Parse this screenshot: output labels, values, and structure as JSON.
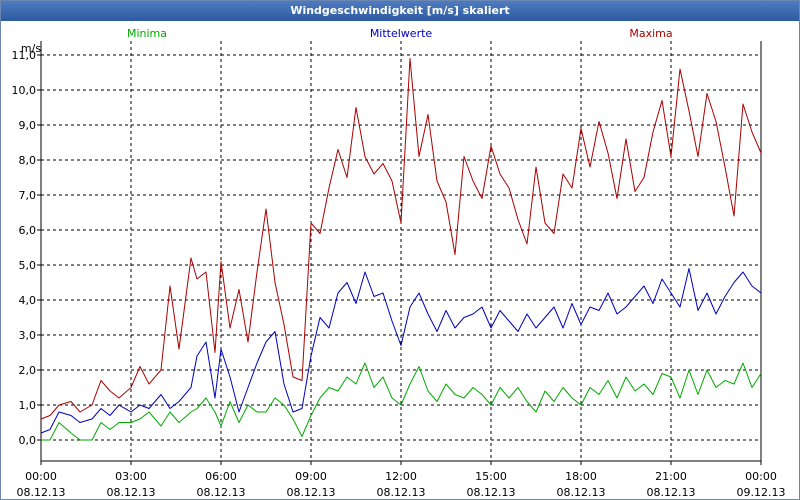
{
  "window": {
    "title": "Windgeschwindigkeit [m/s] skaliert"
  },
  "chart_data": {
    "type": "line",
    "title": "Windgeschwindigkeit [m/s] skaliert",
    "ylabel": "m/s",
    "xlabel": "",
    "ylim": [
      -0.6,
      11.4
    ],
    "xlim": [
      0,
      24
    ],
    "grid": true,
    "yticks": [
      {
        "v": 0,
        "label": "0,0"
      },
      {
        "v": 1,
        "label": "1,0"
      },
      {
        "v": 2,
        "label": "2,0"
      },
      {
        "v": 3,
        "label": "3,0"
      },
      {
        "v": 4,
        "label": "4,0"
      },
      {
        "v": 5,
        "label": "5,0"
      },
      {
        "v": 6,
        "label": "6,0"
      },
      {
        "v": 7,
        "label": "7,0"
      },
      {
        "v": 8,
        "label": "8,0"
      },
      {
        "v": 9,
        "label": "9,0"
      },
      {
        "v": 10,
        "label": "10,0"
      },
      {
        "v": 11,
        "label": "11,0"
      }
    ],
    "xticks": [
      {
        "h": 0,
        "time": "00:00",
        "date": "08.12.13"
      },
      {
        "h": 3,
        "time": "03:00",
        "date": "08.12.13"
      },
      {
        "h": 6,
        "time": "06:00",
        "date": "08.12.13"
      },
      {
        "h": 9,
        "time": "09:00",
        "date": "08.12.13"
      },
      {
        "h": 12,
        "time": "12:00",
        "date": "08.12.13"
      },
      {
        "h": 15,
        "time": "15:00",
        "date": "08.12.13"
      },
      {
        "h": 18,
        "time": "18:00",
        "date": "08.12.13"
      },
      {
        "h": 21,
        "time": "21:00",
        "date": "08.12.13"
      },
      {
        "h": 24,
        "time": "00:00",
        "date": "09.12.13"
      }
    ],
    "series": [
      {
        "name": "Minima",
        "color": "#00aa00",
        "x": [
          0,
          0.3,
          0.6,
          1,
          1.3,
          1.7,
          2,
          2.3,
          2.6,
          3,
          3.3,
          3.6,
          4,
          4.3,
          4.6,
          5,
          5.2,
          5.5,
          5.8,
          6,
          6.3,
          6.6,
          6.9,
          7.2,
          7.5,
          7.8,
          8.1,
          8.4,
          8.7,
          9,
          9.3,
          9.6,
          9.9,
          10.2,
          10.5,
          10.8,
          11.1,
          11.4,
          11.7,
          12,
          12.3,
          12.6,
          12.9,
          13.2,
          13.5,
          13.8,
          14.1,
          14.4,
          14.7,
          15,
          15.3,
          15.6,
          15.9,
          16.2,
          16.5,
          16.8,
          17.1,
          17.4,
          17.7,
          18,
          18.3,
          18.6,
          18.9,
          19.2,
          19.5,
          19.8,
          20.1,
          20.4,
          20.7,
          21,
          21.3,
          21.6,
          21.9,
          22.2,
          22.5,
          22.8,
          23.1,
          23.4,
          23.7,
          24
        ],
        "y": [
          0,
          0,
          0.5,
          0.2,
          0,
          0,
          0.5,
          0.3,
          0.5,
          0.5,
          0.6,
          0.8,
          0.4,
          0.8,
          0.5,
          0.8,
          0.9,
          1.2,
          0.8,
          0.4,
          1.1,
          0.5,
          1,
          0.8,
          0.8,
          1.2,
          1,
          0.6,
          0.1,
          0.7,
          1.2,
          1.5,
          1.4,
          1.8,
          1.6,
          2.2,
          1.5,
          1.8,
          1.2,
          1,
          1.6,
          2.1,
          1.4,
          1.1,
          1.6,
          1.3,
          1.2,
          1.5,
          1.3,
          1,
          1.5,
          1.2,
          1.5,
          1.1,
          0.8,
          1.4,
          1.1,
          1.5,
          1.2,
          1,
          1.5,
          1.3,
          1.7,
          1.2,
          1.8,
          1.4,
          1.6,
          1.3,
          1.9,
          1.8,
          1.2,
          2,
          1.3,
          2,
          1.5,
          1.7,
          1.6,
          2.2,
          1.5,
          1.9
        ]
      },
      {
        "name": "Mittelwerte",
        "color": "#0000bb",
        "x": [
          0,
          0.3,
          0.6,
          1,
          1.3,
          1.7,
          2,
          2.3,
          2.6,
          3,
          3.3,
          3.6,
          4,
          4.3,
          4.6,
          5,
          5.2,
          5.5,
          5.8,
          6,
          6.3,
          6.6,
          6.9,
          7.2,
          7.5,
          7.8,
          8.1,
          8.4,
          8.7,
          9,
          9.3,
          9.6,
          9.9,
          10.2,
          10.5,
          10.8,
          11.1,
          11.4,
          11.7,
          12,
          12.3,
          12.6,
          12.9,
          13.2,
          13.5,
          13.8,
          14.1,
          14.4,
          14.7,
          15,
          15.3,
          15.6,
          15.9,
          16.2,
          16.5,
          16.8,
          17.1,
          17.4,
          17.7,
          18,
          18.3,
          18.6,
          18.9,
          19.2,
          19.5,
          19.8,
          20.1,
          20.4,
          20.7,
          21,
          21.3,
          21.6,
          21.9,
          22.2,
          22.5,
          22.8,
          23.1,
          23.4,
          23.7,
          24
        ],
        "y": [
          0.2,
          0.3,
          0.8,
          0.7,
          0.5,
          0.6,
          0.9,
          0.7,
          1,
          0.8,
          1,
          0.9,
          1.3,
          0.9,
          1.1,
          1.5,
          2.4,
          2.8,
          1.2,
          2.6,
          1.8,
          0.8,
          1.5,
          2.2,
          2.8,
          3.1,
          1.6,
          0.8,
          0.9,
          2.4,
          3.5,
          3.2,
          4.2,
          4.5,
          3.9,
          4.8,
          4.1,
          4.2,
          3.4,
          2.7,
          3.8,
          4.2,
          3.6,
          3.1,
          3.7,
          3.2,
          3.5,
          3.6,
          3.8,
          3.2,
          3.7,
          3.4,
          3.1,
          3.6,
          3.2,
          3.5,
          3.8,
          3.2,
          3.9,
          3.3,
          3.8,
          3.7,
          4.2,
          3.6,
          3.8,
          4.1,
          4.4,
          3.9,
          4.6,
          4.2,
          3.8,
          4.9,
          3.7,
          4.2,
          3.6,
          4.1,
          4.5,
          4.8,
          4.4,
          4.2
        ]
      },
      {
        "name": "Maxima",
        "color": "#aa0000",
        "x": [
          0,
          0.3,
          0.6,
          1,
          1.3,
          1.7,
          2,
          2.3,
          2.6,
          3,
          3.3,
          3.6,
          4,
          4.3,
          4.6,
          5,
          5.2,
          5.5,
          5.8,
          6,
          6.3,
          6.6,
          6.9,
          7.2,
          7.5,
          7.8,
          8.1,
          8.4,
          8.7,
          9,
          9.3,
          9.6,
          9.9,
          10.2,
          10.5,
          10.8,
          11.1,
          11.4,
          11.7,
          12,
          12.3,
          12.6,
          12.9,
          13.2,
          13.5,
          13.8,
          14.1,
          14.4,
          14.7,
          15,
          15.3,
          15.6,
          15.9,
          16.2,
          16.5,
          16.8,
          17.1,
          17.4,
          17.7,
          18,
          18.3,
          18.6,
          18.9,
          19.2,
          19.5,
          19.8,
          20.1,
          20.4,
          20.7,
          21,
          21.3,
          21.6,
          21.9,
          22.2,
          22.5,
          22.8,
          23.1,
          23.4,
          23.7,
          24
        ],
        "y": [
          0.6,
          0.7,
          1,
          1.1,
          0.8,
          1,
          1.7,
          1.4,
          1.2,
          1.5,
          2.1,
          1.6,
          2,
          4.4,
          2.6,
          5.2,
          4.6,
          4.8,
          2.5,
          5.1,
          3.2,
          4.3,
          2.8,
          4.8,
          6.6,
          4.5,
          3.3,
          1.8,
          1.7,
          6.2,
          5.9,
          7.2,
          8.3,
          7.5,
          9.5,
          8.1,
          7.6,
          7.9,
          7.4,
          6.2,
          10.9,
          8.1,
          9.3,
          7.4,
          6.8,
          5.3,
          8.1,
          7.4,
          6.9,
          8.4,
          7.6,
          7.2,
          6.3,
          5.6,
          7.8,
          6.2,
          5.9,
          7.6,
          7.2,
          8.9,
          7.8,
          9.1,
          8.2,
          6.9,
          8.6,
          7.1,
          7.5,
          8.8,
          9.7,
          8.1,
          10.6,
          9.4,
          8.1,
          9.9,
          9.1,
          7.8,
          6.4,
          9.6,
          8.8,
          8.2
        ]
      }
    ],
    "legend": [
      "Minima",
      "Mittelwerte",
      "Maxima"
    ],
    "legend_position": "top"
  }
}
